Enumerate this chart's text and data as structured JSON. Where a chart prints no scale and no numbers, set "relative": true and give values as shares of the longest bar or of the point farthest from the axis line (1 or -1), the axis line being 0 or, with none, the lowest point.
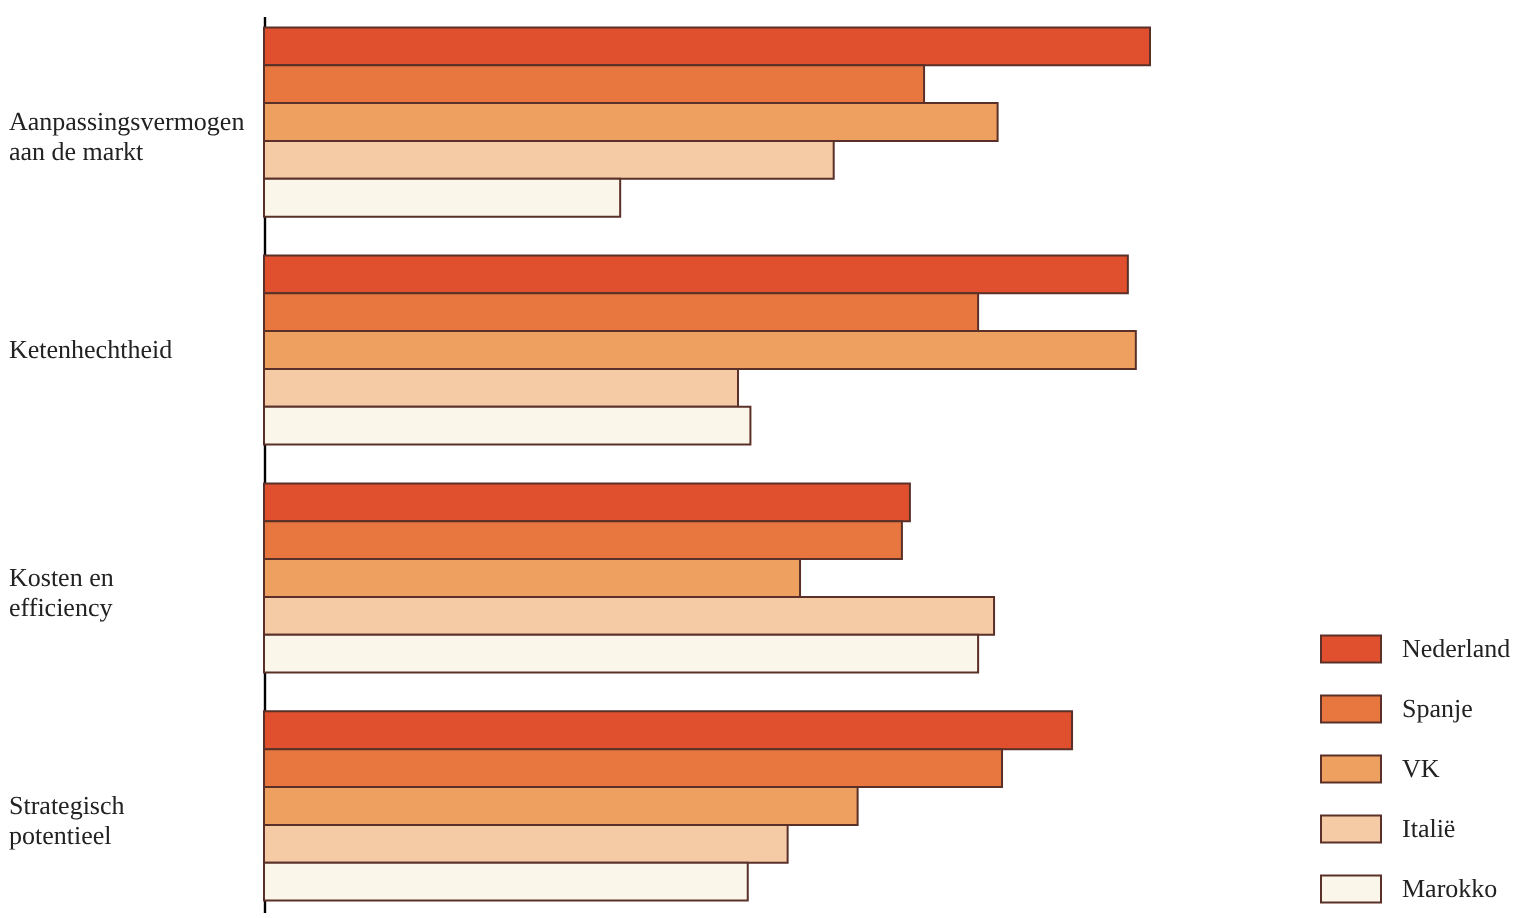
{
  "chart_data": {
    "type": "bar",
    "orientation": "horizontal",
    "relative": true,
    "legend": "bottom right",
    "categories": [
      "Aanpassingsvermogen aan de markt",
      "Ketenhechtheid",
      "Kosten en efficiency",
      "Strategisch potentieel"
    ],
    "series": [
      {
        "name": "Nederland",
        "color": "#e0502e",
        "values": [
          1,
          0.975,
          0.729,
          0.912
        ]
      },
      {
        "name": "Spanje",
        "color": "#e8773f",
        "values": [
          0.745,
          0.806,
          0.72,
          0.833
        ]
      },
      {
        "name": "VK",
        "color": "#eea060",
        "values": [
          0.828,
          0.984,
          0.605,
          0.67
        ]
      },
      {
        "name": "Italië",
        "color": "#f5cba6",
        "values": [
          0.643,
          0.535,
          0.824,
          0.591
        ]
      },
      {
        "name": "Marokko",
        "color": "#faf6ea",
        "values": [
          0.402,
          0.549,
          0.806,
          0.546
        ]
      }
    ]
  }
}
